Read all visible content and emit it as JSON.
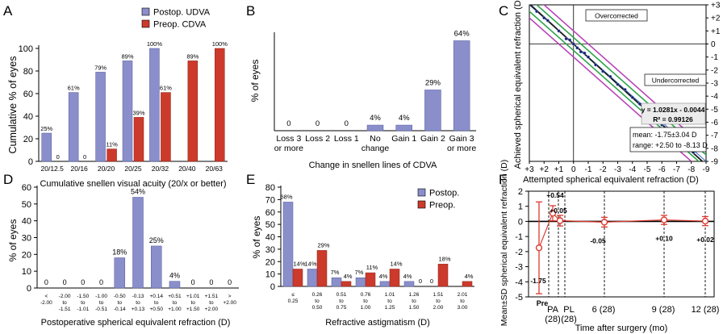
{
  "figure": {
    "panel_letters": [
      "A",
      "B",
      "C",
      "D",
      "E",
      "F"
    ]
  },
  "colors": {
    "postop_blue": "#8a8fcb",
    "preop_red": "#cc3a2b",
    "outer_purple": "#b844b8",
    "inner_green": "#2ea34a",
    "regression_black": "#1a1a1a",
    "f_line": "#dd3a30"
  },
  "chart_data": [
    {
      "panel": "A",
      "type": "bar",
      "ylabel": "Cumulative % of eyes",
      "xlabel": "Cumulative snellen visual acuity (20/x or better)",
      "ylim": [
        0,
        100
      ],
      "yticks": [
        0,
        20,
        40,
        60,
        80,
        100
      ],
      "categories": [
        "20/12.5",
        "20/16",
        "20/20",
        "20/25",
        "20/32",
        "20/40",
        "20/63"
      ],
      "series": [
        {
          "name": "Postop. UDVA",
          "values": [
            25,
            61,
            79,
            89,
            100,
            null,
            null
          ],
          "labels": [
            "25%",
            "61%",
            "79%",
            "89%",
            "100%",
            "",
            ""
          ]
        },
        {
          "name": "Preop. CDVA",
          "values": [
            0,
            0,
            11,
            39,
            61,
            89,
            100
          ],
          "labels": [
            "0",
            "0",
            "11%",
            "39%",
            "61%",
            "89%",
            "100%"
          ]
        }
      ],
      "legend_position": "top-right"
    },
    {
      "panel": "B",
      "type": "bar",
      "ylabel": "% of eyes",
      "xlabel": "Change in snellen lines of CDVA",
      "ylim": [
        0,
        70
      ],
      "categories": [
        [
          "Loss 3",
          "or more"
        ],
        [
          "Loss 2"
        ],
        [
          "Loss 1"
        ],
        [
          "No",
          "change"
        ],
        [
          "Gain 1"
        ],
        [
          "Gain 2"
        ],
        [
          "Gain 3",
          "or more"
        ]
      ],
      "values": [
        0,
        0,
        0,
        4,
        4,
        29,
        64
      ],
      "labels": [
        "0",
        "0",
        "0",
        "4%",
        "4%",
        "29%",
        "64%"
      ]
    },
    {
      "panel": "C",
      "type": "scatter",
      "xlabel": "Attempted spherical equivalent refraction (D)",
      "ylabel": "Achieved spherical equivalent refraction (D)",
      "xlim": [
        3,
        -9
      ],
      "ylim": [
        3,
        -9
      ],
      "ticks": [
        "+3",
        "+2",
        "+1",
        "0",
        "-1",
        "-2",
        "-3",
        "-4",
        "-5",
        "-6",
        "-7",
        "-8",
        "-9"
      ],
      "tick_values": [
        3,
        2,
        1,
        0,
        -1,
        -2,
        -3,
        -4,
        -5,
        -6,
        -7,
        -8,
        -9
      ],
      "regions": [
        "Overcorrected",
        "Undercorrected"
      ],
      "equation": "y = 1.0281x - 0.0044",
      "r_squared": "R² = 0.99126",
      "slope": 1.0281,
      "intercept": -0.0044,
      "stats": [
        "mean: -1.75±3.04 D",
        "range: +2.50 to -8.13 D"
      ],
      "points": [
        {
          "x": 2.5,
          "y": 2.5
        },
        {
          "x": 2.0,
          "y": 2.0
        },
        {
          "x": 1.75,
          "y": 1.8
        },
        {
          "x": 1.0,
          "y": 1.0
        },
        {
          "x": 0.5,
          "y": 0.4
        },
        {
          "x": 0.25,
          "y": 0.3
        },
        {
          "x": 0.0,
          "y": 0.0
        },
        {
          "x": -0.25,
          "y": -0.3
        },
        {
          "x": -0.5,
          "y": -0.6
        },
        {
          "x": -0.75,
          "y": -0.7
        },
        {
          "x": -1.0,
          "y": -1.0
        },
        {
          "x": -1.5,
          "y": -1.6
        },
        {
          "x": -2.0,
          "y": -2.1
        },
        {
          "x": -2.5,
          "y": -2.5
        },
        {
          "x": -3.0,
          "y": -3.1
        },
        {
          "x": -3.5,
          "y": -3.5
        },
        {
          "x": -4.0,
          "y": -4.1
        },
        {
          "x": -4.5,
          "y": -4.6
        },
        {
          "x": -5.0,
          "y": -5.2
        },
        {
          "x": -5.5,
          "y": -5.6
        },
        {
          "x": -6.0,
          "y": -6.2
        },
        {
          "x": -6.5,
          "y": -6.6
        },
        {
          "x": -7.0,
          "y": -7.2
        },
        {
          "x": -7.5,
          "y": -7.7
        },
        {
          "x": -8.13,
          "y": -8.3
        }
      ],
      "bands": [
        {
          "type": "outer",
          "offset": 1.0
        },
        {
          "type": "inner",
          "offset": 0.5
        }
      ]
    },
    {
      "panel": "D",
      "type": "bar",
      "ylabel": "% of eyes",
      "xlabel": "Postoperative spherical equivalent refraction (D)",
      "ylim": [
        0,
        60
      ],
      "yticks": [
        0,
        10,
        20,
        30,
        40,
        50,
        60
      ],
      "categories": [
        [
          "<",
          "-2.00"
        ],
        [
          "-2.00",
          "to",
          "-1.51"
        ],
        [
          "-1.50",
          "to",
          "-1.01"
        ],
        [
          "-1.00",
          "to",
          "-0.51"
        ],
        [
          "-0.50",
          "to",
          "-0.14"
        ],
        [
          "-0.13",
          "to",
          "+0.13"
        ],
        [
          "+0.14",
          "to",
          "+0.50"
        ],
        [
          "+0.51",
          "to",
          "+1.00"
        ],
        [
          "+1.01",
          "to",
          "+1.50"
        ],
        [
          "+1.51",
          "to",
          "+2.00"
        ],
        [
          ">",
          "+2.00"
        ]
      ],
      "values": [
        0,
        0,
        0,
        0,
        18,
        54,
        25,
        4,
        0,
        0,
        0
      ],
      "labels": [
        "0",
        "0",
        "0",
        "0",
        "18%",
        "54%",
        "25%",
        "4%",
        "0",
        "0",
        "0"
      ]
    },
    {
      "panel": "E",
      "type": "bar",
      "ylabel": "% of eyes",
      "xlabel": "Refractive astigmatism (D)",
      "ylim": [
        0,
        80
      ],
      "yticks": [
        0,
        10,
        20,
        30,
        40,
        50,
        60,
        70,
        80
      ],
      "categories": [
        [
          "≤",
          "0.25"
        ],
        [
          "0.26",
          "to",
          "0.50"
        ],
        [
          "0.51",
          "to",
          "0.75"
        ],
        [
          "0.76",
          "to",
          "1.00"
        ],
        [
          "1.01",
          "to",
          "1.25"
        ],
        [
          "1.26",
          "to",
          "1.50"
        ],
        [
          "1.51",
          "to",
          "2.00"
        ],
        [
          "2.01",
          "to",
          "3.00"
        ]
      ],
      "series": [
        {
          "name": "Postop.",
          "values": [
            68,
            14,
            7,
            7,
            4,
            4,
            0,
            0
          ],
          "labels": [
            "68%",
            "14%",
            "7%",
            "7%",
            "4%",
            "4%",
            "0",
            ""
          ]
        },
        {
          "name": "Preop.",
          "values": [
            14,
            29,
            4,
            11,
            14,
            0,
            18,
            4
          ],
          "labels": [
            "14%",
            "29%",
            "4%",
            "11%",
            "14%",
            "0",
            "18%",
            "4%"
          ]
        }
      ],
      "legend_position": "top-right"
    },
    {
      "panel": "F",
      "type": "line",
      "ylabel": "Mean±SD spherical equivalent refraction (D)",
      "xlabel": "Time after surgery (mo)",
      "ylim": [
        -5,
        2
      ],
      "yticks": [
        2,
        1,
        0,
        -1,
        -2,
        -3,
        -4,
        -5
      ],
      "xticks": [
        [
          "Pre"
        ],
        [
          "PA",
          "(28)"
        ],
        [
          "PL",
          "(28)"
        ],
        [
          "6 (28)"
        ],
        [
          "9 (28)"
        ],
        [
          "12 (28)"
        ]
      ],
      "points": [
        {
          "label": "-1.75",
          "mean": -1.75,
          "sd": 3.04,
          "x_index": 0
        },
        {
          "label": "+0.54",
          "mean": 0.54,
          "sd": 0.5,
          "x_index": 1
        },
        {
          "label": "+0.05",
          "mean": 0.05,
          "sd": 0.35,
          "x_index": 2
        },
        {
          "label": "-0.05",
          "mean": -0.05,
          "sd": 0.32,
          "x_index": 3
        },
        {
          "label": "+0.10",
          "mean": 0.1,
          "sd": 0.3,
          "x_index": 4
        },
        {
          "label": "+0.02",
          "mean": 0.02,
          "sd": 0.3,
          "x_index": 5
        }
      ]
    }
  ]
}
